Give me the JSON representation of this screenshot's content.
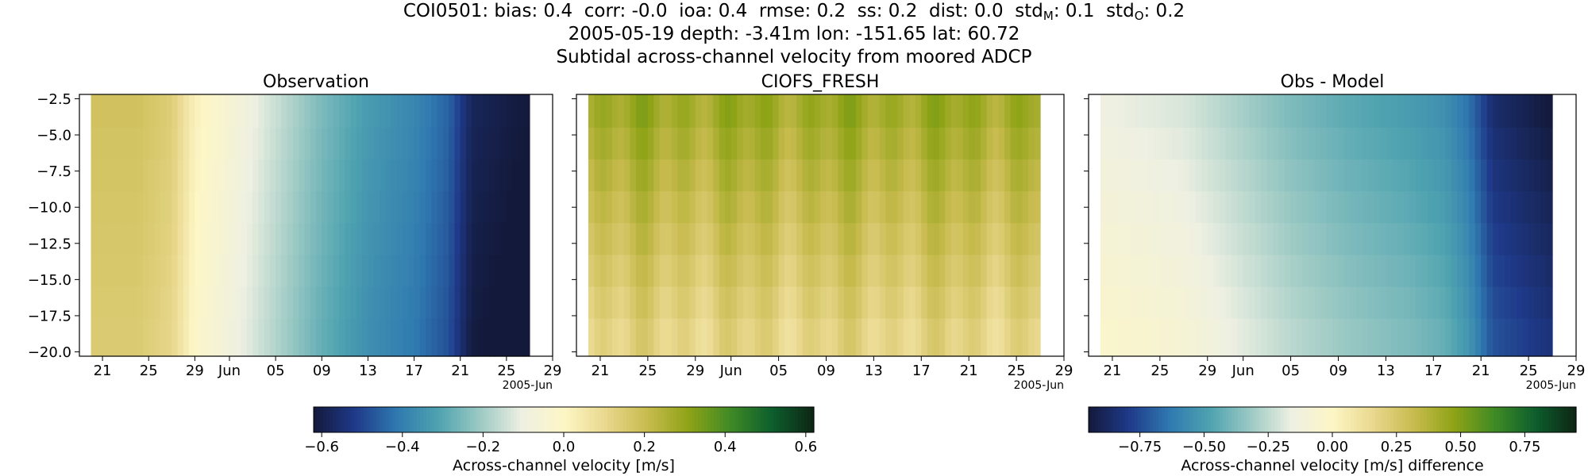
{
  "header": {
    "stats_line": {
      "prefix": "COI0501: bias: 0.4  corr: -0.0  ioa: 0.4  rmse: 0.2  ss: 0.2  dist: 0.0  std",
      "std_m_sub": "M",
      "mid": ": 0.1  std",
      "std_o_sub": "O",
      "suffix": ": 0.2"
    },
    "location_line": "2005-05-19 depth: -3.41m lon: -151.65 lat: 60.72",
    "description_line": "Subtidal across-channel velocity from moored ADCP"
  },
  "chart_data": [
    {
      "type": "heatmap",
      "title": "Observation",
      "ylabel": "",
      "y_ticks": [
        "−20.0",
        "−17.5",
        "−15.0",
        "−12.5",
        "−10.0",
        "−7.5",
        "−5.0",
        "−2.5"
      ],
      "y_tick_values": [
        -20.0,
        -17.5,
        -15.0,
        -12.5,
        -10.0,
        -7.5,
        -5.0,
        -2.5
      ],
      "ylim": [
        -20.3,
        -2.2
      ],
      "x_ticks": [
        "21",
        "25",
        "29",
        "Jun",
        "05",
        "09",
        "13",
        "17",
        "21",
        "25",
        "29"
      ],
      "x_tick_dates": [
        "2005-05-21",
        "2005-05-25",
        "2005-05-29",
        "2005-06-01",
        "2005-06-05",
        "2005-06-09",
        "2005-06-13",
        "2005-06-17",
        "2005-06-21",
        "2005-06-25",
        "2005-06-29"
      ],
      "x_offset_label": "2005-Jun",
      "xlim": [
        "2005-05-19",
        "2005-06-29"
      ],
      "data_range": [
        "2005-05-20",
        "2005-06-27"
      ],
      "depth_rows": [
        -3.4,
        -5.6,
        -7.8,
        -10.0,
        -12.2,
        -14.4,
        -16.6,
        -18.8
      ],
      "time_profile": [
        {
          "date": "2005-05-20",
          "value": 0.18
        },
        {
          "date": "2005-05-24",
          "value": 0.18
        },
        {
          "date": "2005-05-27",
          "value": 0.14
        },
        {
          "date": "2005-05-29",
          "value": 0.02
        },
        {
          "date": "2005-06-01",
          "value": -0.05
        },
        {
          "date": "2005-06-05",
          "value": -0.15
        },
        {
          "date": "2005-06-09",
          "value": -0.25
        },
        {
          "date": "2005-06-13",
          "value": -0.33
        },
        {
          "date": "2005-06-17",
          "value": -0.38
        },
        {
          "date": "2005-06-20",
          "value": -0.45
        },
        {
          "date": "2005-06-22",
          "value": -0.58
        },
        {
          "date": "2005-06-27",
          "value": -0.62
        }
      ],
      "colorbar": "cb1"
    },
    {
      "type": "heatmap",
      "title": "CIOFS_FRESH",
      "y_ticks": [
        "",
        "",
        "",
        "",
        "",
        "",
        "",
        ""
      ],
      "y_tick_values": [
        -20.0,
        -17.5,
        -15.0,
        -12.5,
        -10.0,
        -7.5,
        -5.0,
        -2.5
      ],
      "ylim": [
        -20.3,
        -2.2
      ],
      "x_ticks": [
        "21",
        "25",
        "29",
        "Jun",
        "05",
        "09",
        "13",
        "17",
        "21",
        "25",
        "29"
      ],
      "x_tick_dates": [
        "2005-05-21",
        "2005-05-25",
        "2005-05-29",
        "2005-06-01",
        "2005-06-05",
        "2005-06-09",
        "2005-06-13",
        "2005-06-17",
        "2005-06-21",
        "2005-06-25",
        "2005-06-29"
      ],
      "x_offset_label": "2005-Jun",
      "xlim": [
        "2005-05-19",
        "2005-06-29"
      ],
      "data_range": [
        "2005-05-20",
        "2005-06-27"
      ],
      "depth_rows": [
        -3.4,
        -5.6,
        -7.8,
        -10.0,
        -12.2,
        -14.4,
        -16.6,
        -18.8
      ],
      "surface_value": 0.28,
      "bottom_value": 0.12,
      "colorbar": "cb1"
    },
    {
      "type": "heatmap",
      "title": "Obs - Model",
      "y_ticks": [
        "",
        "",
        "",
        "",
        "",
        "",
        "",
        ""
      ],
      "y_tick_values": [
        -20.0,
        -17.5,
        -15.0,
        -12.5,
        -10.0,
        -7.5,
        -5.0,
        -2.5
      ],
      "ylim": [
        -20.3,
        -2.2
      ],
      "x_ticks": [
        "21",
        "25",
        "29",
        "Jun",
        "05",
        "09",
        "13",
        "17",
        "21",
        "25",
        "29"
      ],
      "x_tick_dates": [
        "2005-05-21",
        "2005-05-25",
        "2005-05-29",
        "2005-06-01",
        "2005-06-05",
        "2005-06-09",
        "2005-06-13",
        "2005-06-17",
        "2005-06-21",
        "2005-06-25",
        "2005-06-29"
      ],
      "x_offset_label": "2005-Jun",
      "xlim": [
        "2005-05-19",
        "2005-06-29"
      ],
      "data_range": [
        "2005-05-20",
        "2005-06-27"
      ],
      "depth_rows": [
        -3.4,
        -5.6,
        -7.8,
        -10.0,
        -12.2,
        -14.4,
        -16.6,
        -18.8
      ],
      "time_profile": [
        {
          "date": "2005-05-20",
          "value": -0.15
        },
        {
          "date": "2005-05-27",
          "value": -0.2
        },
        {
          "date": "2005-06-01",
          "value": -0.3
        },
        {
          "date": "2005-06-05",
          "value": -0.38
        },
        {
          "date": "2005-06-10",
          "value": -0.45
        },
        {
          "date": "2005-06-15",
          "value": -0.5
        },
        {
          "date": "2005-06-18",
          "value": -0.55
        },
        {
          "date": "2005-06-20",
          "value": -0.65
        },
        {
          "date": "2005-06-22",
          "value": -0.85
        },
        {
          "date": "2005-06-27",
          "value": -0.95
        }
      ],
      "colorbar": "cb2"
    }
  ],
  "colorbars": {
    "cb1": {
      "label": "Across-channel velocity [m/s]",
      "range": [
        -0.62,
        0.62
      ],
      "ticks": [
        "−0.6",
        "−0.4",
        "−0.2",
        "0.0",
        "0.2",
        "0.4",
        "0.6"
      ],
      "tick_values": [
        -0.6,
        -0.4,
        -0.2,
        0.0,
        0.2,
        0.4,
        0.6
      ]
    },
    "cb2": {
      "label": "Across-channel velocity [m/s] difference",
      "range": [
        -0.95,
        0.95
      ],
      "ticks": [
        "−0.75",
        "−0.50",
        "−0.25",
        "0.00",
        "0.25",
        "0.50",
        "0.75"
      ],
      "tick_values": [
        -0.75,
        -0.5,
        -0.25,
        0.0,
        0.25,
        0.5,
        0.75
      ]
    }
  },
  "colormap": [
    "#13193a",
    "#1f3a8a",
    "#2f79b0",
    "#4fa3b0",
    "#9dcac4",
    "#eef0e2",
    "#fdf6c6",
    "#e9d88e",
    "#c8bb4f",
    "#8ea316",
    "#3f8a25",
    "#0d5e2d",
    "#0d2513"
  ]
}
